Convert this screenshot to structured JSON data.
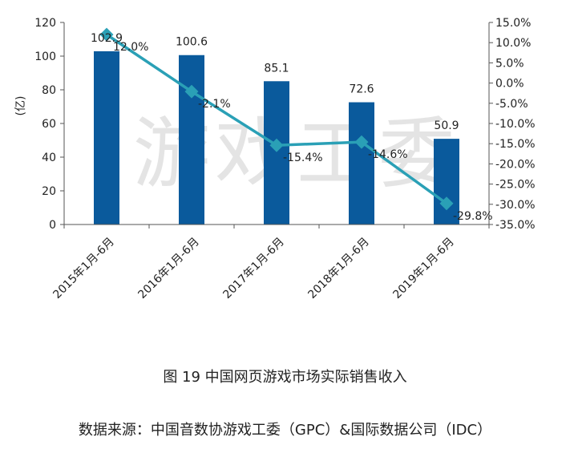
{
  "figure": {
    "title": "图 19  中国网页游戏市场实际销售收入",
    "source": "数据来源：中国音数协游戏工委（GPC）&国际数据公司（IDC）",
    "watermark": "游戏工委"
  },
  "chart_data": {
    "type": "bar+line",
    "categories": [
      "2015年1月-6月",
      "2016年1月-6月",
      "2017年1月-6月",
      "2018年1月-6月",
      "2019年1月-6月"
    ],
    "series": [
      {
        "type": "bar",
        "axis": "left",
        "color": "#0a5a9c",
        "values": [
          102.9,
          100.6,
          85.1,
          72.6,
          50.9
        ],
        "labels": [
          "102.9",
          "100.6",
          "85.1",
          "72.6",
          "50.9"
        ]
      },
      {
        "type": "line",
        "axis": "right",
        "color": "#2aa0b6",
        "values": [
          12.0,
          -2.1,
          -15.4,
          -14.6,
          -29.8
        ],
        "labels": [
          "12.0%",
          "-2.1%",
          "-15.4%",
          "-14.6%",
          "-29.8%"
        ]
      }
    ],
    "ylabel": "(亿)",
    "ylim": [
      0,
      120
    ],
    "y_ticks": [
      0,
      20,
      40,
      60,
      80,
      100,
      120
    ],
    "y2lim": [
      -35,
      15
    ],
    "y2_ticks": [
      15,
      10,
      5,
      0,
      -5,
      -10,
      -15,
      -20,
      -25,
      -30,
      -35
    ],
    "y2_tick_labels": [
      "15.0%",
      "10.0%",
      "5.0%",
      "0.0%",
      "-5.0%",
      "-10.0%",
      "-15.0%",
      "-20.0%",
      "-25.0%",
      "-30.0%",
      "-35.0%"
    ],
    "grid": false,
    "legend": "none"
  }
}
